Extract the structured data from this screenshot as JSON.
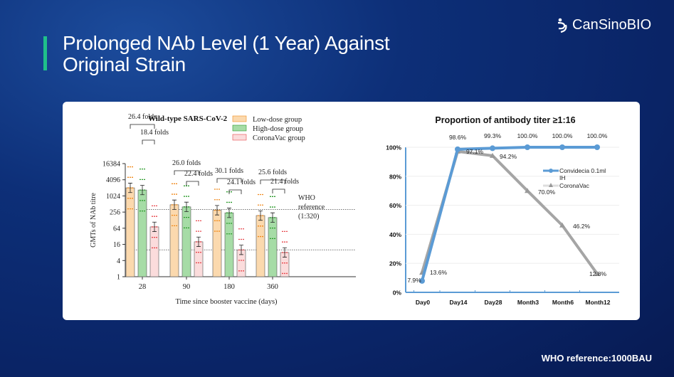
{
  "header": {
    "title_line1": "Prolonged NAb Level (1 Year) Against",
    "title_line2": "Original Strain",
    "logo": "CanSinoBIO"
  },
  "footer": {
    "note": "WHO reference:1000BAU"
  },
  "chart_data": [
    {
      "type": "bar",
      "title": "Wild-type SARS-CoV-2",
      "xlabel": "Time since booster vaccine (days)",
      "ylabel": "GMTs of NAb titre",
      "yscale": "log2",
      "ylim": [
        1,
        16384
      ],
      "yticks": [
        "1",
        "4",
        "16",
        "64",
        "256",
        "1024",
        "4096",
        "16384"
      ],
      "categories": [
        "28",
        "90",
        "180",
        "360"
      ],
      "series": [
        {
          "name": "Low-dose group",
          "color": "#fbd9ae",
          "stroke": "#f08a1c",
          "values": [
            2048,
            480,
            300,
            190
          ]
        },
        {
          "name": "High-dose group",
          "color": "#a6dca6",
          "stroke": "#2a9a2a",
          "values": [
            1700,
            400,
            240,
            160
          ]
        },
        {
          "name": "CoronaVac group",
          "color": "#fbdcdc",
          "stroke": "#e8474c",
          "values": [
            72,
            20,
            10,
            8
          ]
        }
      ],
      "folds": [
        {
          "outer": "26.4 folds",
          "inner": "18.4 folds"
        },
        {
          "outer": "26.0 folds",
          "inner": "22.4 folds"
        },
        {
          "outer": "30.1 folds",
          "inner": "24.1 folds"
        },
        {
          "outer": "25.6 folds",
          "inner": "21.4 folds"
        }
      ],
      "reference": {
        "label1": "WHO",
        "label2": "reference",
        "label3": "(1:320)",
        "value": 320
      },
      "lower_reference": 10
    },
    {
      "type": "line",
      "title": "Proportion of antibody titer ≥1:16",
      "ylim": [
        0,
        100
      ],
      "yticks": [
        "0%",
        "20%",
        "40%",
        "60%",
        "80%",
        "100%"
      ],
      "categories": [
        "Day0",
        "Day14",
        "Day28",
        "Month3",
        "Month6",
        "Month12"
      ],
      "series": [
        {
          "name": "Convidecia 0.1ml IH",
          "color": "#5b9bd5",
          "values": [
            7.9,
            98.6,
            99.3,
            100.0,
            100.0,
            100.0
          ],
          "labels": [
            "7.9%",
            "98.6%",
            "99.3%",
            "100.0%",
            "100.0%",
            "100.0%"
          ]
        },
        {
          "name": "CoronaVac",
          "color": "#a5a5a5",
          "values": [
            13.6,
            97.1,
            94.2,
            70.0,
            46.2,
            12.8
          ],
          "labels": [
            "13.6%",
            "97.1%",
            "94.2%",
            "70.0%",
            "46.2%",
            "12.8%"
          ]
        }
      ],
      "legend": {
        "s1_line1": "Convidecia 0.1ml",
        "s1_line2": "IH",
        "s2": "CoronaVac"
      }
    }
  ]
}
